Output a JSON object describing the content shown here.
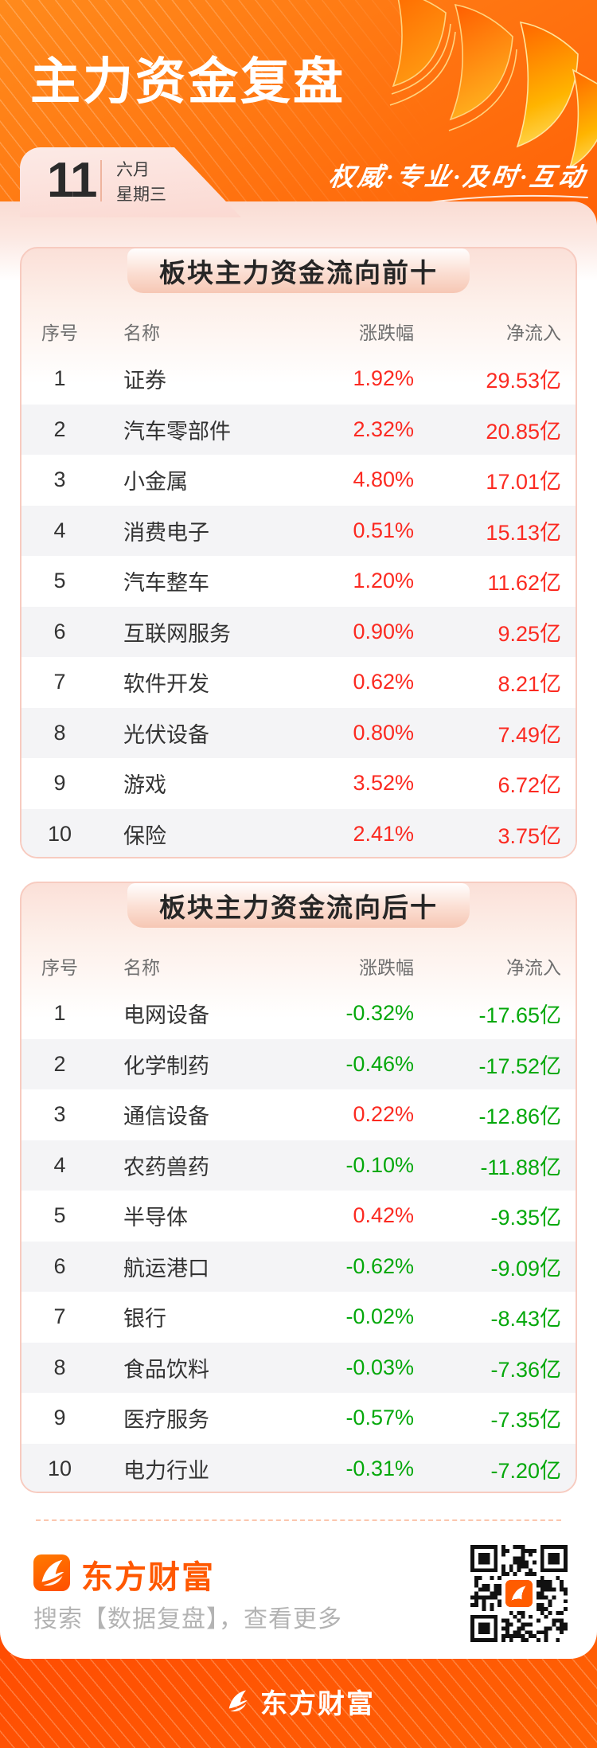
{
  "header": {
    "title": "主力资金复盘",
    "slogan": "权威·专业·及时·互动",
    "date": {
      "day": "11",
      "month": "六月",
      "weekday": "星期三"
    }
  },
  "colors": {
    "accent_orange": "#ff5800",
    "up_red": "#fb2a21",
    "down_green": "#04a80b"
  },
  "tables": [
    {
      "title": "板块主力资金流向前十",
      "columns": {
        "index": "序号",
        "name": "名称",
        "change": "涨跌幅",
        "net": "净流入"
      },
      "rows": [
        {
          "index": "1",
          "name": "证券",
          "change": "1.92%",
          "change_color": "red",
          "net": "29.53亿",
          "net_color": "red"
        },
        {
          "index": "2",
          "name": "汽车零部件",
          "change": "2.32%",
          "change_color": "red",
          "net": "20.85亿",
          "net_color": "red"
        },
        {
          "index": "3",
          "name": "小金属",
          "change": "4.80%",
          "change_color": "red",
          "net": "17.01亿",
          "net_color": "red"
        },
        {
          "index": "4",
          "name": "消费电子",
          "change": "0.51%",
          "change_color": "red",
          "net": "15.13亿",
          "net_color": "red"
        },
        {
          "index": "5",
          "name": "汽车整车",
          "change": "1.20%",
          "change_color": "red",
          "net": "11.62亿",
          "net_color": "red"
        },
        {
          "index": "6",
          "name": "互联网服务",
          "change": "0.90%",
          "change_color": "red",
          "net": "9.25亿",
          "net_color": "red"
        },
        {
          "index": "7",
          "name": "软件开发",
          "change": "0.62%",
          "change_color": "red",
          "net": "8.21亿",
          "net_color": "red"
        },
        {
          "index": "8",
          "name": "光伏设备",
          "change": "0.80%",
          "change_color": "red",
          "net": "7.49亿",
          "net_color": "red"
        },
        {
          "index": "9",
          "name": "游戏",
          "change": "3.52%",
          "change_color": "red",
          "net": "6.72亿",
          "net_color": "red"
        },
        {
          "index": "10",
          "name": "保险",
          "change": "2.41%",
          "change_color": "red",
          "net": "3.75亿",
          "net_color": "red"
        }
      ]
    },
    {
      "title": "板块主力资金流向后十",
      "columns": {
        "index": "序号",
        "name": "名称",
        "change": "涨跌幅",
        "net": "净流入"
      },
      "rows": [
        {
          "index": "1",
          "name": "电网设备",
          "change": "-0.32%",
          "change_color": "green",
          "net": "-17.65亿",
          "net_color": "green"
        },
        {
          "index": "2",
          "name": "化学制药",
          "change": "-0.46%",
          "change_color": "green",
          "net": "-17.52亿",
          "net_color": "green"
        },
        {
          "index": "3",
          "name": "通信设备",
          "change": "0.22%",
          "change_color": "red",
          "net": "-12.86亿",
          "net_color": "green"
        },
        {
          "index": "4",
          "name": "农药兽药",
          "change": "-0.10%",
          "change_color": "green",
          "net": "-11.88亿",
          "net_color": "green"
        },
        {
          "index": "5",
          "name": "半导体",
          "change": "0.42%",
          "change_color": "red",
          "net": "-9.35亿",
          "net_color": "green"
        },
        {
          "index": "6",
          "name": "航运港口",
          "change": "-0.62%",
          "change_color": "green",
          "net": "-9.09亿",
          "net_color": "green"
        },
        {
          "index": "7",
          "name": "银行",
          "change": "-0.02%",
          "change_color": "green",
          "net": "-8.43亿",
          "net_color": "green"
        },
        {
          "index": "8",
          "name": "食品饮料",
          "change": "-0.03%",
          "change_color": "green",
          "net": "-7.36亿",
          "net_color": "green"
        },
        {
          "index": "9",
          "name": "医疗服务",
          "change": "-0.57%",
          "change_color": "green",
          "net": "-7.35亿",
          "net_color": "green"
        },
        {
          "index": "10",
          "name": "电力行业",
          "change": "-0.31%",
          "change_color": "green",
          "net": "-7.20亿",
          "net_color": "green"
        }
      ]
    }
  ],
  "footer": {
    "brand": "东方财富",
    "search_hint": "搜索【数据复盘】，查看更多",
    "bottom_brand": "东方财富"
  }
}
